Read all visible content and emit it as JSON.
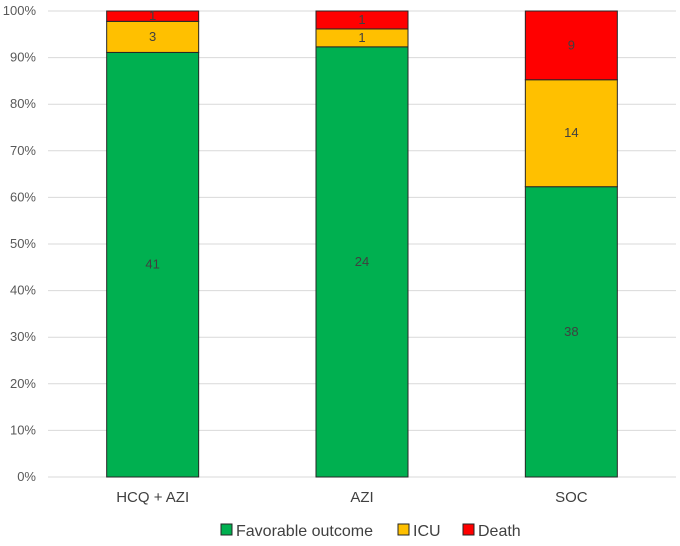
{
  "chart_data": {
    "type": "bar",
    "stacked": true,
    "percent": true,
    "title": "",
    "xlabel": "",
    "ylabel": "",
    "ylim": [
      0,
      100
    ],
    "yticks": [
      "0%",
      "10%",
      "20%",
      "30%",
      "40%",
      "50%",
      "60%",
      "70%",
      "80%",
      "90%",
      "100%"
    ],
    "categories": [
      "HCQ + AZI",
      "AZI",
      "SOC"
    ],
    "series": [
      {
        "name": "Favorable outcome",
        "color": "#00b050",
        "values": [
          41,
          24,
          38
        ]
      },
      {
        "name": "ICU",
        "color": "#ffc000",
        "values": [
          3,
          1,
          14
        ]
      },
      {
        "name": "Death",
        "color": "#ff0000",
        "values": [
          1,
          1,
          9
        ]
      }
    ],
    "legend_position": "bottom"
  }
}
